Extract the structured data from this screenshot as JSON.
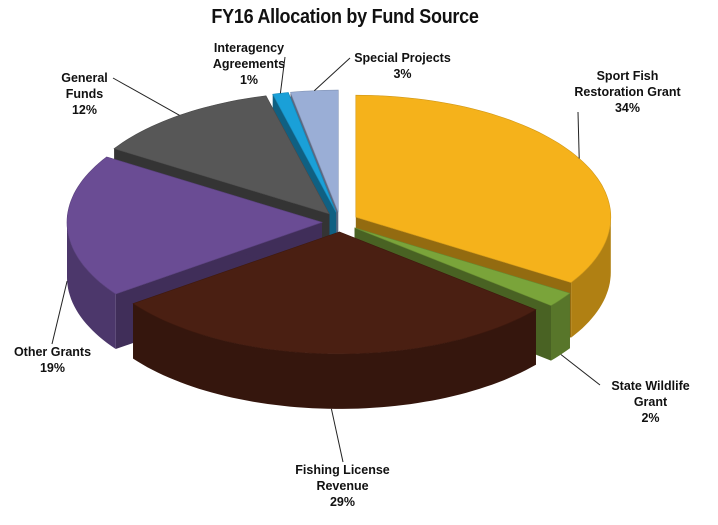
{
  "chart_data": {
    "type": "pie3d",
    "title": "FY16 Allocation by Fund Source",
    "categories": [
      "Sport Fish Restoration Grant",
      "State Wildlife Grant",
      "Fishing License Revenue",
      "Other Grants",
      "General Funds",
      "Interagency Agreements",
      "Special Projects"
    ],
    "values": [
      34,
      2,
      29,
      19,
      12,
      1,
      3
    ],
    "value_labels": [
      "34%",
      "2%",
      "29%",
      "19%",
      "12%",
      "1%",
      "3%"
    ],
    "colors": [
      "#f5b21b",
      "#7aa43a",
      "#4a1f12",
      "#6a4c94",
      "#575757",
      "#1aa0d8",
      "#9aaed6"
    ]
  }
}
